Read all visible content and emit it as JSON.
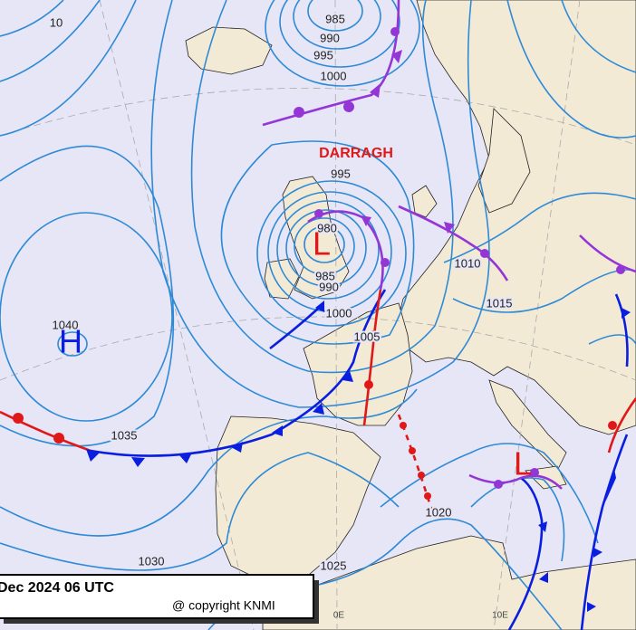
{
  "storm_name": "DARRAGH",
  "pressure_centers": [
    {
      "symbol": "L"
    },
    {
      "symbol": "H"
    },
    {
      "symbol": "L"
    }
  ],
  "isobar_labels": [
    "10",
    "985",
    "990",
    "995",
    "1000",
    "995",
    "980",
    "985",
    "990",
    "1000",
    "1005",
    "1010",
    "1015",
    "1040",
    "1035",
    "1030",
    "1025",
    "1020"
  ],
  "longitude_labels": [
    "0E",
    "10E"
  ],
  "footer": {
    "valid_time": "Dec 2024 06 UTC",
    "copyright": "@ copyright KNMI"
  }
}
